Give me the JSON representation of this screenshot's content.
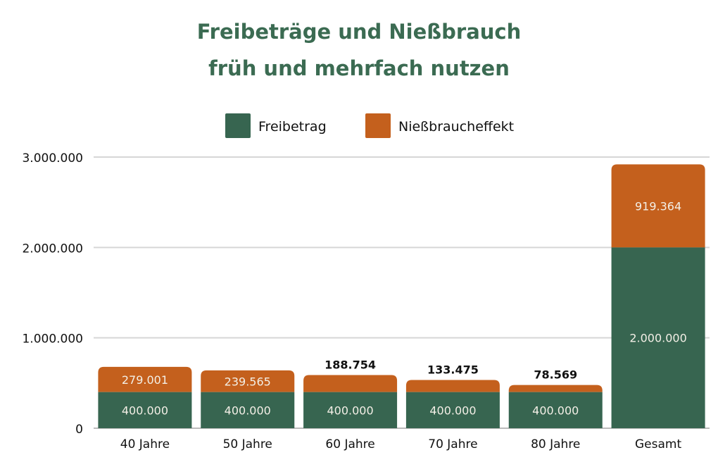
{
  "chart_data": {
    "type": "bar",
    "stacked": true,
    "title": [
      "Freibeträge und Nießbrauch",
      "früh und mehrfach nutzen"
    ],
    "categories": [
      "40 Jahre",
      "50 Jahre",
      "60 Jahre",
      "70 Jahre",
      "80 Jahre",
      "Gesamt"
    ],
    "series": [
      {
        "name": "Freibetrag",
        "color": "#376550",
        "values": [
          400000,
          400000,
          400000,
          400000,
          400000,
          2000000
        ],
        "labels": [
          "400.000",
          "400.000",
          "400.000",
          "400.000",
          "400.000",
          "2.000.000"
        ]
      },
      {
        "name": "Nießbraucheffekt",
        "color": "#c4601d",
        "values": [
          279001,
          239565,
          188754,
          133475,
          78569,
          919364
        ],
        "labels": [
          "279.001",
          "239.565",
          "188.754",
          "133.475",
          "78.569",
          "919.364"
        ]
      }
    ],
    "yticks": [
      "0",
      "1.000.000",
      "2.000.000",
      "3.000.000"
    ],
    "ytick_values": [
      0,
      1000000,
      2000000,
      3000000
    ],
    "ylim": [
      0,
      3000000
    ],
    "grid": true,
    "legend": "top-center"
  }
}
